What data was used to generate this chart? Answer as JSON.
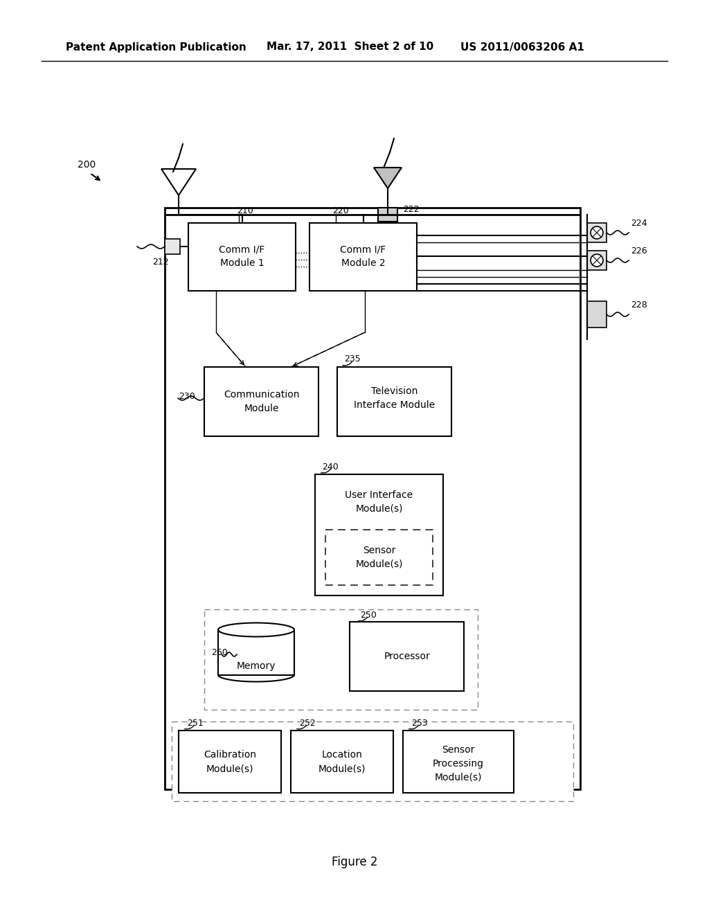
{
  "bg_color": "#ffffff",
  "header_left": "Patent Application Publication",
  "header_mid": "Mar. 17, 2011  Sheet 2 of 10",
  "header_right": "US 2011/0063206 A1",
  "figure_label": "Figure 2"
}
